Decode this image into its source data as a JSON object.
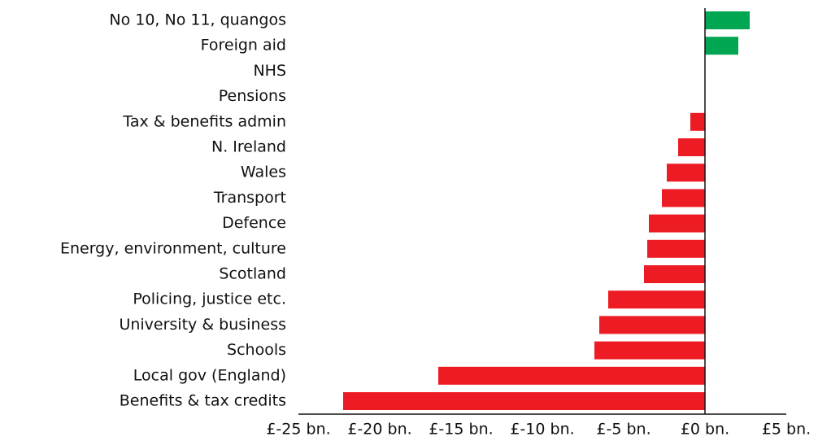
{
  "chart_data": {
    "type": "barh",
    "categories": [
      "No 10, No 11, quangos",
      "Foreign aid",
      "NHS",
      "Pensions",
      "Tax & benefits admin",
      "N. Ireland",
      "Wales",
      "Transport",
      "Defence",
      "Energy, environment, culture",
      "Scotland",
      "Policing, justice etc.",
      "University & business",
      "Schools",
      "Local gov (England)",
      "Benefits & tax credits"
    ],
    "values": [
      2.75,
      2.05,
      0,
      0,
      -0.9,
      -1.65,
      -2.35,
      -2.65,
      -3.45,
      -3.55,
      -3.75,
      -5.95,
      -6.5,
      -6.8,
      -16.4,
      -22.25
    ],
    "colors": [
      "#00a651",
      "#00a651",
      "#ed1c24",
      "#ed1c24",
      "#ed1c24",
      "#ed1c24",
      "#ed1c24",
      "#ed1c24",
      "#ed1c24",
      "#ed1c24",
      "#ed1c24",
      "#ed1c24",
      "#ed1c24",
      "#ed1c24",
      "#ed1c24",
      "#ed1c24"
    ],
    "xlim": [
      -25,
      5
    ],
    "xticks": [
      {
        "value": -25,
        "label": "£-25 bn."
      },
      {
        "value": -20,
        "label": "£-20 bn."
      },
      {
        "value": -15,
        "label": "£-15 bn."
      },
      {
        "value": -10,
        "label": "£-10 bn."
      },
      {
        "value": -5,
        "label": "£-5 bn."
      },
      {
        "value": 0,
        "label": "£0 bn."
      },
      {
        "value": 5,
        "label": "£5 bn."
      }
    ]
  }
}
